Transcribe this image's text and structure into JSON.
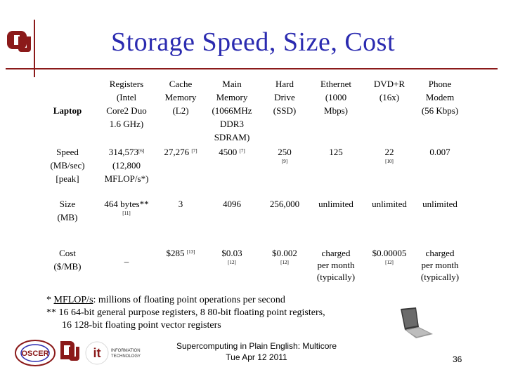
{
  "slide": {
    "title": "Storage Speed, Size, Cost",
    "footer_line1": "Supercomputing in Plain English: Multicore",
    "footer_line2": "Tue Apr 12 2011",
    "page_number": "36"
  },
  "table": {
    "corner": "Laptop",
    "columns": [
      [
        "Registers",
        "(Intel",
        "Core2 Duo",
        "1.6 GHz)"
      ],
      [
        "Cache",
        "Memory",
        "(L2)"
      ],
      [
        "Main",
        "Memory",
        "(1066MHz",
        "DDR3",
        "SDRAM)"
      ],
      [
        "Hard",
        "Drive",
        "(SSD)"
      ],
      [
        "Ethernet",
        "(1000",
        "Mbps)"
      ],
      [
        "DVD+R",
        "(16x)"
      ],
      [
        "Phone",
        "Modem",
        "(56 Kbps)"
      ]
    ],
    "speed": {
      "label": [
        "Speed",
        "(MB/sec)",
        "[peak]"
      ],
      "registers": [
        "314,573",
        "(12,800",
        "MFLOP/s*)"
      ],
      "registers_ref": "[6]",
      "cache": "27,276",
      "cache_ref": "[7]",
      "main": "4500",
      "main_ref": "[7]",
      "disk": "250",
      "disk_ref": "[9]",
      "ethernet": "125",
      "dvd": "22",
      "dvd_ref": "[10]",
      "modem": "0.007"
    },
    "size": {
      "label": [
        "Size",
        "(MB)"
      ],
      "registers": "464 bytes**",
      "registers_ref": "[11]",
      "cache": "3",
      "main": "4096",
      "disk": "256,000",
      "ethernet": "unlimited",
      "dvd": "unlimited",
      "modem": "unlimited"
    },
    "cost": {
      "label": [
        "Cost",
        "($/MB)"
      ],
      "registers": "–",
      "cache": "$285",
      "cache_ref": "[13]",
      "main": "$0.03",
      "main_ref": "[12]",
      "disk": "$0.002",
      "disk_ref": "[12]",
      "ethernet": [
        "charged",
        "per month",
        "(typically)"
      ],
      "dvd": "$0.00005",
      "dvd_ref": "[12]",
      "modem": [
        "charged",
        "per month",
        "(typically)"
      ]
    }
  },
  "notes": {
    "n1_prefix": "* ",
    "n1_term": "MFLOP/s",
    "n1_text": ": millions of floating point operations per second",
    "n2_line1": "** 16 64-bit general purpose registers, 8 80-bit floating point registers,",
    "n2_line2": "16 128-bit floating point vector registers"
  },
  "logos": {
    "oscer_text": "OSCER",
    "it_text": "it",
    "it_sub1": "INFORMATION",
    "it_sub2": "TECHNOLOGY"
  },
  "colors": {
    "title": "#2b2bb0",
    "accent": "#8b1a1a"
  }
}
